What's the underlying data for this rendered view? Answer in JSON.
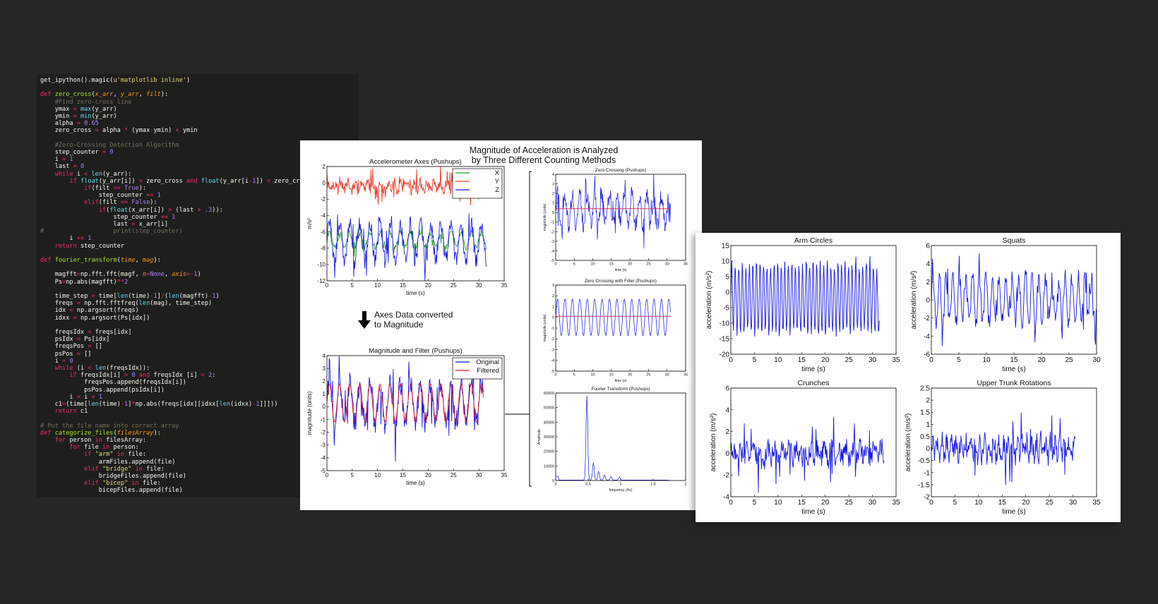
{
  "code_lines": [
    [
      [
        "get_ipython().magic(",
        ""
      ],
      [
        "u'matplotlib inline'",
        "str"
      ],
      [
        ")",
        ""
      ]
    ],
    [],
    [
      [
        "def ",
        "kw"
      ],
      [
        "zero_cross",
        "fn"
      ],
      [
        "(",
        ""
      ],
      [
        "x_arr",
        "arg"
      ],
      [
        ", ",
        ""
      ],
      [
        "y_arr",
        "arg"
      ],
      [
        ", ",
        ""
      ],
      [
        "filt",
        "arg"
      ],
      [
        "):",
        ""
      ]
    ],
    [
      [
        "    #Find zero-cross line",
        "cm"
      ]
    ],
    [
      [
        "    ymax ",
        ""
      ],
      [
        "= ",
        "kw"
      ],
      [
        "max",
        "bi"
      ],
      [
        "(y_arr)",
        ""
      ]
    ],
    [
      [
        "    ymin ",
        ""
      ],
      [
        "= ",
        "kw"
      ],
      [
        "min",
        "bi"
      ],
      [
        "(y_arr)",
        ""
      ]
    ],
    [
      [
        "    alpha ",
        ""
      ],
      [
        "= ",
        "kw"
      ],
      [
        "0.65",
        "num"
      ]
    ],
    [
      [
        "    zero_cross ",
        ""
      ],
      [
        "= ",
        "kw"
      ],
      [
        "alpha ",
        ""
      ],
      [
        "* ",
        "kw"
      ],
      [
        "(ymax",
        ""
      ],
      [
        "-",
        "kw"
      ],
      [
        "ymin) ",
        ""
      ],
      [
        "+ ",
        "kw"
      ],
      [
        "ymin",
        ""
      ]
    ],
    [],
    [
      [
        "    #Zero-Crossing Detection Algorithm",
        "cm"
      ]
    ],
    [
      [
        "    step_counter ",
        ""
      ],
      [
        "= ",
        "kw"
      ],
      [
        "0",
        "num"
      ]
    ],
    [
      [
        "    i ",
        ""
      ],
      [
        "= ",
        "kw"
      ],
      [
        "1",
        "num"
      ]
    ],
    [
      [
        "    last ",
        ""
      ],
      [
        "= ",
        "kw"
      ],
      [
        "0",
        "num"
      ]
    ],
    [
      [
        "    ",
        ""
      ],
      [
        "while ",
        "kw"
      ],
      [
        "i ",
        ""
      ],
      [
        "< ",
        "kw"
      ],
      [
        "len",
        "bi"
      ],
      [
        "(y_arr):",
        ""
      ]
    ],
    [
      [
        "        ",
        ""
      ],
      [
        "if ",
        "kw"
      ],
      [
        "float",
        "bi"
      ],
      [
        "(y_arr[i]) ",
        ""
      ],
      [
        "> ",
        "kw"
      ],
      [
        "zero_cross ",
        ""
      ],
      [
        "and ",
        "kw"
      ],
      [
        "float",
        "bi"
      ],
      [
        "(y_arr[i",
        ""
      ],
      [
        "-",
        "kw"
      ],
      [
        "1",
        "num"
      ],
      [
        "]) ",
        ""
      ],
      [
        "< ",
        "kw"
      ],
      [
        "zero_cross:",
        ""
      ]
    ],
    [
      [
        "            ",
        ""
      ],
      [
        "if",
        "kw"
      ],
      [
        "(filt ",
        ""
      ],
      [
        "== ",
        "kw"
      ],
      [
        "True",
        "num"
      ],
      [
        "):",
        ""
      ]
    ],
    [
      [
        "                step_counter ",
        ""
      ],
      [
        "+= ",
        "kw"
      ],
      [
        "1",
        "num"
      ]
    ],
    [
      [
        "            ",
        ""
      ],
      [
        "elif",
        "kw"
      ],
      [
        "(filt ",
        ""
      ],
      [
        "== ",
        "kw"
      ],
      [
        "False",
        "num"
      ],
      [
        "):",
        ""
      ]
    ],
    [
      [
        "                ",
        ""
      ],
      [
        "if",
        "kw"
      ],
      [
        "(",
        ""
      ],
      [
        "float",
        "bi"
      ],
      [
        "(x_arr[i]) ",
        ""
      ],
      [
        "> ",
        "kw"
      ],
      [
        "(last ",
        ""
      ],
      [
        "+ ",
        "kw"
      ],
      [
        ".3",
        "num"
      ],
      [
        ")):",
        ""
      ]
    ],
    [
      [
        "                    step_counter ",
        ""
      ],
      [
        "+= ",
        "kw"
      ],
      [
        "1",
        "num"
      ]
    ],
    [
      [
        "                    last ",
        ""
      ],
      [
        "= ",
        "kw"
      ],
      [
        "x_arr[i]",
        ""
      ]
    ],
    [
      [
        "#                   print(step_counter)",
        "cm"
      ]
    ],
    [
      [
        "        i ",
        ""
      ],
      [
        "+= ",
        "kw"
      ],
      [
        "1",
        "num"
      ]
    ],
    [
      [
        "    ",
        ""
      ],
      [
        "return ",
        "kw"
      ],
      [
        "step_counter",
        ""
      ]
    ],
    [],
    [
      [
        "def ",
        "kw"
      ],
      [
        "fourier_transform",
        "fn"
      ],
      [
        "(",
        ""
      ],
      [
        "time",
        "arg"
      ],
      [
        ", ",
        ""
      ],
      [
        "mag",
        "arg"
      ],
      [
        "):",
        ""
      ]
    ],
    [],
    [
      [
        "    magfft",
        ""
      ],
      [
        "=",
        "kw"
      ],
      [
        "np.fft.fft(magf, ",
        ""
      ],
      [
        "n",
        "arg"
      ],
      [
        "=",
        "kw"
      ],
      [
        "None",
        "num"
      ],
      [
        ", ",
        ""
      ],
      [
        "axis",
        "arg"
      ],
      [
        "=-",
        "kw"
      ],
      [
        "1",
        "num"
      ],
      [
        ")",
        ""
      ]
    ],
    [
      [
        "    Ps",
        ""
      ],
      [
        "=",
        "kw"
      ],
      [
        "np.abs(magfft)",
        ""
      ],
      [
        "**",
        "kw"
      ],
      [
        "2",
        "num"
      ]
    ],
    [],
    [
      [
        "    time_step ",
        ""
      ],
      [
        "= ",
        "kw"
      ],
      [
        "time[",
        ""
      ],
      [
        "len",
        "bi"
      ],
      [
        "(time)",
        ""
      ],
      [
        "-",
        "kw"
      ],
      [
        "1",
        "num"
      ],
      [
        "]",
        ""
      ],
      [
        "/",
        "kw"
      ],
      [
        "(",
        ""
      ],
      [
        "len",
        "bi"
      ],
      [
        "(magfft)",
        ""
      ],
      [
        "-",
        "kw"
      ],
      [
        "1",
        "num"
      ],
      [
        ")",
        ""
      ]
    ],
    [
      [
        "    freqs ",
        ""
      ],
      [
        "= ",
        "kw"
      ],
      [
        "np.fft.fftfreq(",
        ""
      ],
      [
        "len",
        "bi"
      ],
      [
        "(mag), time_step)",
        ""
      ]
    ],
    [
      [
        "    idx ",
        ""
      ],
      [
        "= ",
        "kw"
      ],
      [
        "np.argsort(freqs)",
        ""
      ]
    ],
    [
      [
        "    idxx ",
        ""
      ],
      [
        "= ",
        "kw"
      ],
      [
        "np.argsort(Ps[idx])",
        ""
      ]
    ],
    [],
    [
      [
        "    freqsIdx ",
        ""
      ],
      [
        "= ",
        "kw"
      ],
      [
        "freqs[idx]",
        ""
      ]
    ],
    [
      [
        "    psIdx ",
        ""
      ],
      [
        "= ",
        "kw"
      ],
      [
        "Ps[idx]",
        ""
      ]
    ],
    [
      [
        "    freqsPos ",
        ""
      ],
      [
        "= ",
        "kw"
      ],
      [
        "[]",
        ""
      ]
    ],
    [
      [
        "    psPos ",
        ""
      ],
      [
        "= ",
        "kw"
      ],
      [
        "[]",
        ""
      ]
    ],
    [
      [
        "    i ",
        ""
      ],
      [
        "= ",
        "kw"
      ],
      [
        "0",
        "num"
      ]
    ],
    [
      [
        "    ",
        ""
      ],
      [
        "while ",
        "kw"
      ],
      [
        "(i ",
        ""
      ],
      [
        "< ",
        "kw"
      ],
      [
        "len",
        "bi"
      ],
      [
        "(freqsIdx)):",
        ""
      ]
    ],
    [
      [
        "        ",
        ""
      ],
      [
        "if ",
        "kw"
      ],
      [
        "freqsIdx[i] ",
        ""
      ],
      [
        "> ",
        "kw"
      ],
      [
        "0 ",
        "num"
      ],
      [
        "and ",
        "kw"
      ],
      [
        "freqsIdx [i] ",
        ""
      ],
      [
        "< ",
        "kw"
      ],
      [
        "2",
        "num"
      ],
      [
        ":",
        ""
      ]
    ],
    [
      [
        "            freqsPos.append(freqsIdx[i])",
        ""
      ]
    ],
    [
      [
        "            psPos.append(psIdx[i])",
        ""
      ]
    ],
    [
      [
        "        i ",
        ""
      ],
      [
        "= ",
        "kw"
      ],
      [
        "i ",
        ""
      ],
      [
        "+ ",
        "kw"
      ],
      [
        "1",
        "num"
      ]
    ],
    [
      [
        "    c1",
        ""
      ],
      [
        "=",
        "kw"
      ],
      [
        "(time[",
        ""
      ],
      [
        "len",
        "bi"
      ],
      [
        "(time)",
        ""
      ],
      [
        "-",
        "kw"
      ],
      [
        "1",
        "num"
      ],
      [
        "]",
        ""
      ],
      [
        "*",
        "kw"
      ],
      [
        "np.abs(freqs[idx][idxx[",
        ""
      ],
      [
        "len",
        "bi"
      ],
      [
        "(idxx)",
        ""
      ],
      [
        "-",
        "kw"
      ],
      [
        "1",
        "num"
      ],
      [
        "]]]))",
        ""
      ]
    ],
    [
      [
        "    ",
        ""
      ],
      [
        "return ",
        "kw"
      ],
      [
        "c1",
        ""
      ]
    ],
    [],
    [
      [
        "# Put the file name into correct array",
        "cm"
      ]
    ],
    [
      [
        "def ",
        "kw"
      ],
      [
        "categorize_files",
        "fn"
      ],
      [
        "(",
        ""
      ],
      [
        "filesArray",
        "arg"
      ],
      [
        "):",
        ""
      ]
    ],
    [
      [
        "    ",
        ""
      ],
      [
        "for ",
        "kw"
      ],
      [
        "person ",
        ""
      ],
      [
        "in ",
        "kw"
      ],
      [
        "filesArray:",
        ""
      ]
    ],
    [
      [
        "        ",
        ""
      ],
      [
        "for ",
        "kw"
      ],
      [
        "file ",
        ""
      ],
      [
        "in ",
        "kw"
      ],
      [
        "person:",
        ""
      ]
    ],
    [
      [
        "            ",
        ""
      ],
      [
        "if ",
        "kw"
      ],
      [
        "\"arm\" ",
        "str"
      ],
      [
        "in ",
        "kw"
      ],
      [
        "file:",
        ""
      ]
    ],
    [
      [
        "                armFiles.append(file)",
        ""
      ]
    ],
    [
      [
        "            ",
        ""
      ],
      [
        "elif ",
        "kw"
      ],
      [
        "\"bridge\" ",
        "str"
      ],
      [
        "in ",
        "kw"
      ],
      [
        "file:",
        ""
      ]
    ],
    [
      [
        "                bridgeFiles.append(file)",
        ""
      ]
    ],
    [
      [
        "            ",
        ""
      ],
      [
        "elif ",
        "kw"
      ],
      [
        "\"bicep\" ",
        "str"
      ],
      [
        "in ",
        "kw"
      ],
      [
        "file:",
        ""
      ]
    ],
    [
      [
        "                bicepFiles.append(file)",
        ""
      ]
    ]
  ],
  "panel1": {
    "header_line1": "Magnitude of Acceleration is Analyzed",
    "header_line2": "by Three Different Counting Methods",
    "arrow_text_line1": "Axes Data converted",
    "arrow_text_line2": "to Magnitude"
  },
  "colors": {
    "x": "#2ca02c",
    "y": "#ef3b2c",
    "z": "#1f1fe6",
    "red": "#e41a1c",
    "blue": "#1515e8",
    "zero_line": "#e0345a"
  },
  "chart_data": [
    {
      "id": "axes",
      "type": "line",
      "title": "Accelerometer Axes (Pushups)",
      "xlabel": "time (s)",
      "ylabel": "m/s²",
      "xlim": [
        0,
        35
      ],
      "ylim": [
        -12,
        2
      ],
      "xticks": [
        0,
        5,
        10,
        15,
        20,
        25,
        30,
        35
      ],
      "yticks": [
        -12,
        -10,
        -8,
        -6,
        -4,
        -2,
        0,
        2
      ],
      "series": [
        {
          "name": "X",
          "color": "#2ca02c",
          "mean": -7.0,
          "amp": 0.9,
          "noise": 0.4,
          "period": 2.0,
          "x_end": 31.5
        },
        {
          "name": "Y",
          "color": "#ef3b2c",
          "mean": -0.4,
          "amp": 0.4,
          "noise": 0.7,
          "period": 1.3,
          "x_end": 31.5
        },
        {
          "name": "Z",
          "color": "#1f1fe6",
          "mean": -7.3,
          "amp": 2.2,
          "noise": 1.0,
          "period": 2.0,
          "x_end": 31.5
        }
      ],
      "legend": "top-right"
    },
    {
      "id": "magfilt",
      "type": "line",
      "title": "Magnitude and Filter (Pushups)",
      "xlabel": "time (s)",
      "ylabel": "magnitude (units)",
      "xlim": [
        0,
        35
      ],
      "ylim": [
        -5,
        4
      ],
      "xticks": [
        0,
        5,
        10,
        15,
        20,
        25,
        30,
        35
      ],
      "yticks": [
        -5,
        -4,
        -3,
        -2,
        -1,
        0,
        1,
        2,
        3,
        4
      ],
      "series": [
        {
          "name": "Original",
          "color": "#1515e8",
          "mean": 0.3,
          "amp": 1.6,
          "noise": 0.9,
          "period": 2.0,
          "x_end": 31
        },
        {
          "name": "Filtered",
          "color": "#e41a1c",
          "mean": 0.3,
          "amp": 1.5,
          "noise": 0.0,
          "period": 2.0,
          "x_end": 31
        }
      ],
      "legend": "top-right"
    },
    {
      "id": "zc",
      "type": "line",
      "title": "Zero Crossing (Pushups)",
      "xlabel": "time (s)",
      "ylabel": "magnitude (units)",
      "xlim": [
        0,
        35
      ],
      "ylim": [
        -5,
        4
      ],
      "xticks": [
        0,
        5,
        10,
        15,
        20,
        25,
        30,
        35
      ],
      "yticks": [
        -5,
        -4,
        -3,
        -2,
        -1,
        0,
        1,
        2,
        3,
        4
      ],
      "series": [
        {
          "color": "#1515e8",
          "mean": 0.3,
          "amp": 1.6,
          "noise": 0.9,
          "period": 2.0,
          "x_end": 31
        }
      ],
      "hline": 0.4
    },
    {
      "id": "zcf",
      "type": "line",
      "title": "Zero Crossing with Filter (Pushups)",
      "xlabel": "time (s)",
      "ylabel": "magnitude (units)",
      "xlim": [
        0,
        35
      ],
      "ylim": [
        -5,
        3
      ],
      "xticks": [
        0,
        5,
        10,
        15,
        20,
        25,
        30,
        35
      ],
      "yticks": [
        -5,
        -4,
        -3,
        -2,
        -1,
        0,
        1,
        2,
        3
      ],
      "series": [
        {
          "color": "#1515e8",
          "mean": 0.0,
          "amp": 1.7,
          "noise": 0.0,
          "period": 2.0,
          "x_end": 31
        }
      ],
      "hline": 0.1
    },
    {
      "id": "fft",
      "type": "line",
      "title": "Fourier Transform (Pushups)",
      "xlabel": "frequency (Hz)",
      "ylabel": "Amplitude",
      "xlim": [
        0,
        2
      ],
      "ylim": [
        0,
        60000
      ],
      "xticks": [
        0.0,
        0.5,
        1.0,
        1.5,
        2.0
      ],
      "yticks": [
        0,
        10000,
        20000,
        30000,
        40000,
        50000,
        60000
      ],
      "peaks": [
        [
          0.48,
          58000
        ],
        [
          0.58,
          12000
        ],
        [
          0.66,
          6000
        ],
        [
          0.75,
          3500
        ],
        [
          0.85,
          2500
        ],
        [
          0.98,
          2000
        ]
      ],
      "x_end": 1.75,
      "series": [
        {
          "color": "#1515e8"
        }
      ]
    },
    {
      "id": "arm",
      "type": "line",
      "title": "Arm Circles",
      "xlabel": "time (s)",
      "ylabel": "acceleration (m/s²)",
      "xlim": [
        0,
        35
      ],
      "ylim": [
        -20,
        15
      ],
      "xticks": [
        0,
        5,
        10,
        15,
        20,
        25,
        30,
        35
      ],
      "yticks": [
        -20,
        -15,
        -10,
        -5,
        0,
        5,
        10,
        15
      ],
      "series": [
        {
          "color": "#1515e8",
          "mean": -2,
          "amp": 11,
          "noise": 1.5,
          "period": 0.75,
          "x_end": 31.5
        }
      ]
    },
    {
      "id": "squats",
      "type": "line",
      "title": "Squats",
      "xlabel": "time (s)",
      "ylabel": "acceleration (m/s²)",
      "xlim": [
        0,
        30
      ],
      "ylim": [
        -6,
        6
      ],
      "xticks": [
        0,
        5,
        10,
        15,
        20,
        25,
        30
      ],
      "yticks": [
        -6,
        -4,
        -2,
        0,
        2,
        4,
        6
      ],
      "series": [
        {
          "color": "#1515e8",
          "mean": 0,
          "amp": 2.4,
          "noise": 1.0,
          "period": 1.2,
          "x_end": 30
        }
      ]
    },
    {
      "id": "crunches",
      "type": "line",
      "title": "Crunches",
      "xlabel": "time (s)",
      "ylabel": "acceleration (m/s²)",
      "xlim": [
        0,
        35
      ],
      "ylim": [
        -4,
        6
      ],
      "xticks": [
        0,
        5,
        10,
        15,
        20,
        25,
        30,
        35
      ],
      "yticks": [
        -4,
        -2,
        0,
        2,
        4,
        6
      ],
      "series": [
        {
          "color": "#1515e8",
          "mean": 0,
          "amp": 0.5,
          "noise": 1.0,
          "period": 1.5,
          "x_end": 32.5
        }
      ]
    },
    {
      "id": "utr",
      "type": "line",
      "title": "Upper Trunk Rotations",
      "xlabel": "time (s)",
      "ylabel": "acceleration (m/s²)",
      "xlim": [
        0,
        35
      ],
      "ylim": [
        -2.0,
        2.5
      ],
      "xticks": [
        0,
        5,
        10,
        15,
        20,
        25,
        30,
        35
      ],
      "yticks": [
        -2.0,
        -1.5,
        -1.0,
        -0.5,
        0.0,
        0.5,
        1.0,
        1.5,
        2.0,
        2.5
      ],
      "series": [
        {
          "color": "#1515e8",
          "mean": 0,
          "amp": 0.3,
          "noise": 0.45,
          "period": 1.0,
          "x_end": 30.5
        }
      ]
    }
  ]
}
